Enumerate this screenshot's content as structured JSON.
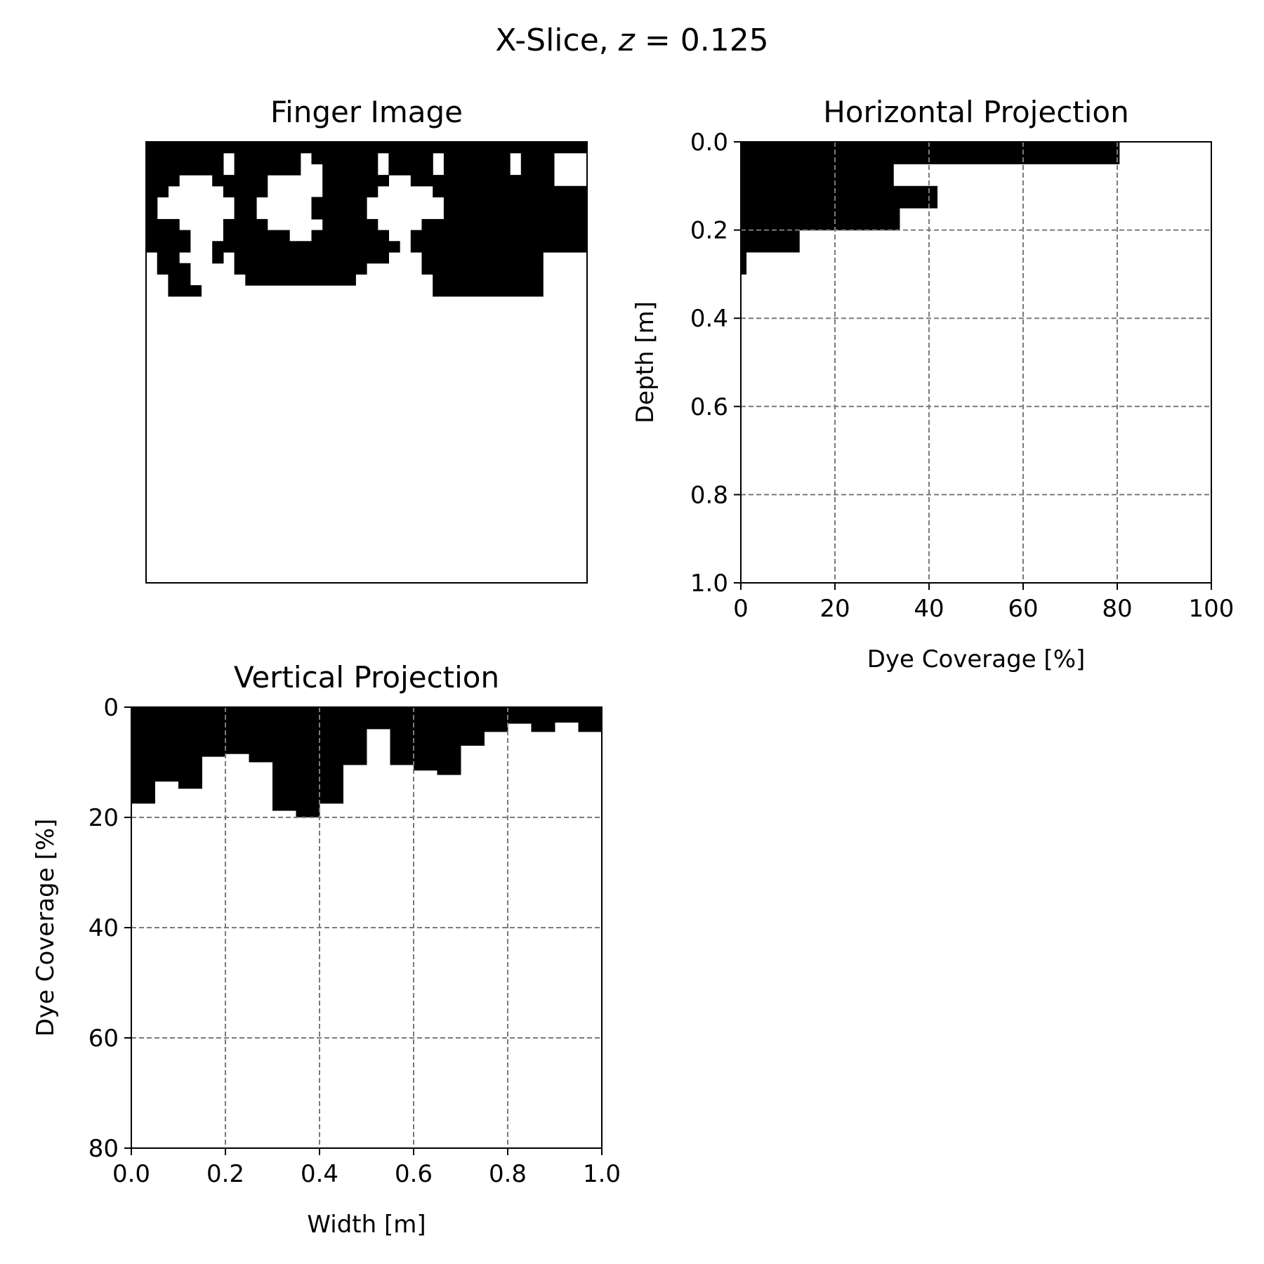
{
  "figure": {
    "suptitle_prefix": "X-Slice, ",
    "suptitle_var": "z",
    "suptitle_value": " = 0.125"
  },
  "chart_data": [
    {
      "type": "heatmap",
      "title": "Finger Image",
      "colormap": {
        "dye": "#000000",
        "no_dye": "#ffffff"
      },
      "grid_columns": 40,
      "grid_rows": 40,
      "rows_with_dye": [
        "1111111111111111111111111111111111111111",
        "1111111011111101111110111101111110111000",
        "1111111011111100111110111101111110111000",
        "1110001111100000111111001111111111111000",
        "1100000111100000111110000011111111111111",
        "1000000011000001111100000001111111111111",
        "1000000011000001111100000001111111111111",
        "1110000111100000111110000111111111111111",
        "1111000111111001111111001111111111111111",
        "1111001111111111111111101111111111111111",
        "0110001011111111111111000111111111110000",
        "0111000011111111111100000111111111110000",
        "0011000001111111111000000011111111110000",
        "0011100000000000000000000011111111110000",
        "0000000000000000000000000000000000000000",
        "0000000000000000000000000000000000000000",
        "0000000000000000000000000000000000000000",
        "0000000000000000000000000000000000000000"
      ],
      "remaining_rows": "no dye"
    },
    {
      "type": "bar",
      "orientation": "horizontal",
      "title": "Horizontal Projection",
      "xlabel": "Dye Coverage [%]",
      "ylabel": "Depth [m]",
      "xlim": [
        0,
        100
      ],
      "ylim": [
        1.0,
        0.0
      ],
      "xticks": [
        "0",
        "20",
        "40",
        "60",
        "80",
        "100"
      ],
      "yticks": [
        "0.0",
        "0.2",
        "0.4",
        "0.6",
        "0.8",
        "1.0"
      ],
      "grid": true,
      "bar_color": "#000000",
      "bins": [
        {
          "depth_from": 0.0,
          "depth_to": 0.05,
          "value": 80.5
        },
        {
          "depth_from": 0.05,
          "depth_to": 0.1,
          "value": 32.5
        },
        {
          "depth_from": 0.1,
          "depth_to": 0.15,
          "value": 41.8
        },
        {
          "depth_from": 0.15,
          "depth_to": 0.2,
          "value": 33.8
        },
        {
          "depth_from": 0.2,
          "depth_to": 0.25,
          "value": 12.5
        },
        {
          "depth_from": 0.25,
          "depth_to": 0.3,
          "value": 1.2
        },
        {
          "depth_from": 0.3,
          "depth_to": 1.0,
          "value": 0
        }
      ]
    },
    {
      "type": "bar",
      "orientation": "vertical",
      "title": "Vertical Projection",
      "xlabel": "Width [m]",
      "ylabel": "Dye Coverage [%]",
      "xlim": [
        0.0,
        1.0
      ],
      "ylim": [
        80,
        0
      ],
      "xticks": [
        "0.0",
        "0.2",
        "0.4",
        "0.6",
        "0.8",
        "1.0"
      ],
      "yticks": [
        "0",
        "20",
        "40",
        "60",
        "80"
      ],
      "grid": true,
      "bar_color": "#000000",
      "bins": [
        {
          "width_from": 0.0,
          "width_to": 0.05,
          "value": 17.5
        },
        {
          "width_from": 0.05,
          "width_to": 0.1,
          "value": 13.5
        },
        {
          "width_from": 0.1,
          "width_to": 0.15,
          "value": 14.8
        },
        {
          "width_from": 0.15,
          "width_to": 0.2,
          "value": 9.0
        },
        {
          "width_from": 0.2,
          "width_to": 0.25,
          "value": 8.5
        },
        {
          "width_from": 0.25,
          "width_to": 0.3,
          "value": 10.0
        },
        {
          "width_from": 0.3,
          "width_to": 0.35,
          "value": 18.8
        },
        {
          "width_from": 0.35,
          "width_to": 0.4,
          "value": 20.0
        },
        {
          "width_from": 0.4,
          "width_to": 0.45,
          "value": 17.5
        },
        {
          "width_from": 0.45,
          "width_to": 0.5,
          "value": 10.5
        },
        {
          "width_from": 0.5,
          "width_to": 0.55,
          "value": 4.0
        },
        {
          "width_from": 0.55,
          "width_to": 0.6,
          "value": 10.5
        },
        {
          "width_from": 0.6,
          "width_to": 0.65,
          "value": 11.5
        },
        {
          "width_from": 0.65,
          "width_to": 0.7,
          "value": 12.3
        },
        {
          "width_from": 0.7,
          "width_to": 0.75,
          "value": 7.0
        },
        {
          "width_from": 0.75,
          "width_to": 0.8,
          "value": 4.5
        },
        {
          "width_from": 0.8,
          "width_to": 0.85,
          "value": 3.0
        },
        {
          "width_from": 0.85,
          "width_to": 0.9,
          "value": 4.5
        },
        {
          "width_from": 0.9,
          "width_to": 0.95,
          "value": 2.8
        },
        {
          "width_from": 0.95,
          "width_to": 1.0,
          "value": 4.5
        }
      ]
    }
  ]
}
